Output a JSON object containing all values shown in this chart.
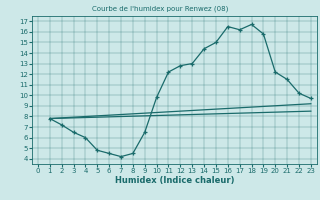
{
  "title": "Courbe de l'humidex pour Renwez (08)",
  "xlabel": "Humidex (Indice chaleur)",
  "bg_color": "#cde8e8",
  "line_color": "#1a6b6b",
  "xlim": [
    -0.5,
    23.5
  ],
  "ylim": [
    3.5,
    17.5
  ],
  "xticks": [
    0,
    1,
    2,
    3,
    4,
    5,
    6,
    7,
    8,
    9,
    10,
    11,
    12,
    13,
    14,
    15,
    16,
    17,
    18,
    19,
    20,
    21,
    22,
    23
  ],
  "yticks": [
    4,
    5,
    6,
    7,
    8,
    9,
    10,
    11,
    12,
    13,
    14,
    15,
    16,
    17
  ],
  "line1_x": [
    1,
    2,
    3,
    4,
    5,
    6,
    7,
    8,
    9,
    10,
    11,
    12,
    13,
    14,
    15,
    16,
    17,
    18,
    19,
    20,
    21,
    22,
    23
  ],
  "line1_y": [
    7.8,
    7.2,
    6.5,
    6.0,
    4.8,
    4.5,
    4.2,
    4.5,
    6.5,
    9.8,
    12.2,
    12.8,
    13.0,
    14.4,
    15.0,
    16.5,
    16.2,
    16.7,
    15.8,
    12.2,
    11.5,
    10.2,
    9.7
  ],
  "line2_x": [
    1,
    23
  ],
  "line2_y": [
    7.8,
    9.2
  ],
  "line3_x": [
    1,
    23
  ],
  "line3_y": [
    7.8,
    8.5
  ]
}
